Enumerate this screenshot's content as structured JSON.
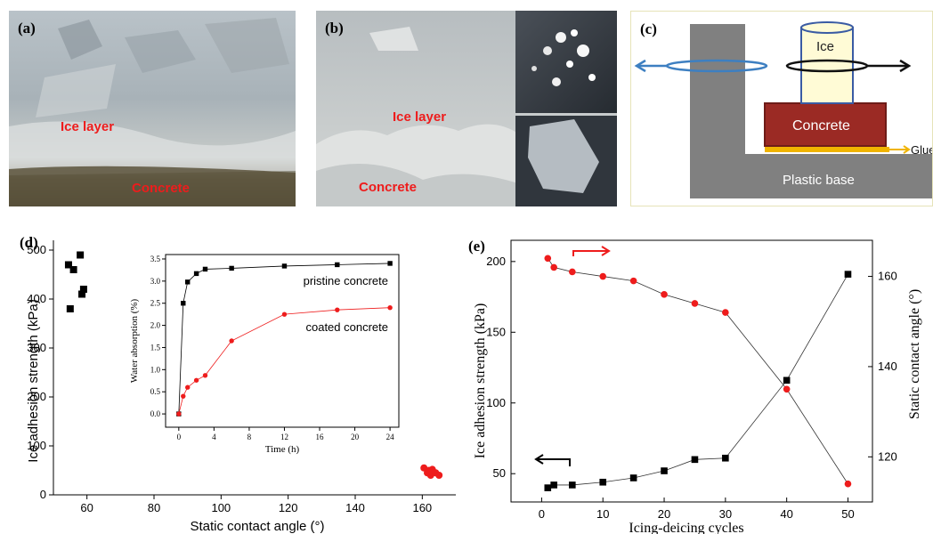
{
  "panels": {
    "a": {
      "label": "(a)",
      "ice_text": "Ice layer",
      "concrete_text": "Concrete"
    },
    "b": {
      "label": "(b)",
      "ice_text": "Ice layer",
      "concrete_text": "Concrete"
    },
    "c": {
      "label": "(c)",
      "ice": "Ice",
      "concrete": "Concrete",
      "glue": "Glue",
      "base": "Plastic base"
    },
    "d": {
      "label": "(d)"
    },
    "e": {
      "label": "(e)"
    }
  },
  "colors": {
    "label_red": "#ee1c1c",
    "concrete_box": "#9b2a24",
    "glue": "#f0b400",
    "base_gray": "#808080",
    "arrow_blue": "#3d7fc1",
    "ice_fill": "#fffbd6",
    "ice_stroke": "#3a5ba3"
  },
  "chart_data": [
    {
      "panel": "d",
      "type": "scatter",
      "xlabel": "Static contact angle (°)",
      "ylabel": "Ice adhesion strength (kPa)",
      "xlim": [
        50,
        170
      ],
      "ylim": [
        0,
        520
      ],
      "xticks": [
        60,
        80,
        100,
        120,
        140,
        160
      ],
      "yticks": [
        0,
        100,
        200,
        300,
        400,
        500
      ],
      "ytick_labels": [
        "0",
        "100",
        "200",
        "300",
        "400",
        "500"
      ],
      "series": [
        {
          "color": "#000000",
          "marker": "square",
          "x": [
            54.5,
            55,
            56,
            58,
            58.5,
            59
          ],
          "y": [
            470,
            380,
            460,
            490,
            410,
            420
          ]
        },
        {
          "color": "#ee1c1c",
          "marker": "circle",
          "x": [
            160.5,
            161.5,
            162,
            162.5,
            163,
            164,
            165
          ],
          "y": [
            55,
            45,
            50,
            40,
            52,
            45,
            40
          ]
        }
      ],
      "inset": {
        "type": "line",
        "xlabel": "Time (h)",
        "ylabel": "Water absorption (%)",
        "xlim": [
          -1.5,
          25
        ],
        "ylim": [
          -0.3,
          3.6
        ],
        "xticks": [
          0,
          4,
          8,
          12,
          16,
          20,
          24
        ],
        "yticks": [
          0.0,
          0.5,
          1.0,
          1.5,
          2.0,
          2.5,
          3.0,
          3.5
        ],
        "ytick_labels": [
          "0.0",
          "0.5",
          "1.0",
          "1.5",
          "2.0",
          "2.5",
          "3.0",
          "3.5"
        ],
        "series": [
          {
            "name": "pristine concrete",
            "color": "#000000",
            "marker": "square",
            "x": [
              0,
              0.5,
              1,
              2,
              3,
              6,
              12,
              18,
              24
            ],
            "y": [
              0.0,
              2.5,
              2.98,
              3.17,
              3.27,
              3.29,
              3.34,
              3.37,
              3.4
            ]
          },
          {
            "name": "coated concrete",
            "color": "#ee1c1c",
            "marker": "circle",
            "x": [
              0,
              0.5,
              1,
              2,
              3,
              6,
              12,
              18,
              24
            ],
            "y": [
              0.0,
              0.4,
              0.6,
              0.76,
              0.87,
              1.65,
              2.25,
              2.35,
              2.4
            ]
          }
        ]
      }
    },
    {
      "panel": "e",
      "type": "line",
      "xlabel": "Icing-deicing cycles",
      "ylabel": "Ice adhesion strength (kPa)",
      "ylabel_right": "Static contact angle (°)",
      "xlim": [
        -5,
        54
      ],
      "ylim": [
        30,
        215
      ],
      "ylim_right": [
        110,
        168
      ],
      "xticks": [
        0,
        10,
        20,
        30,
        40,
        50
      ],
      "yticks": [
        50,
        100,
        150,
        200
      ],
      "yticks_right": [
        120,
        140,
        160
      ],
      "series": [
        {
          "axis": "left",
          "color": "#000000",
          "marker": "square",
          "x": [
            1,
            2,
            5,
            10,
            15,
            20,
            25,
            30,
            40,
            50
          ],
          "y": [
            40,
            42,
            42,
            44,
            47,
            52,
            60,
            61,
            116,
            191
          ]
        },
        {
          "axis": "right",
          "color": "#ee1c1c",
          "marker": "circle",
          "x": [
            1,
            2,
            5,
            10,
            15,
            20,
            25,
            30,
            40,
            50
          ],
          "y": [
            164,
            162,
            161,
            160,
            159,
            156,
            154,
            152,
            135,
            114
          ]
        }
      ]
    }
  ]
}
